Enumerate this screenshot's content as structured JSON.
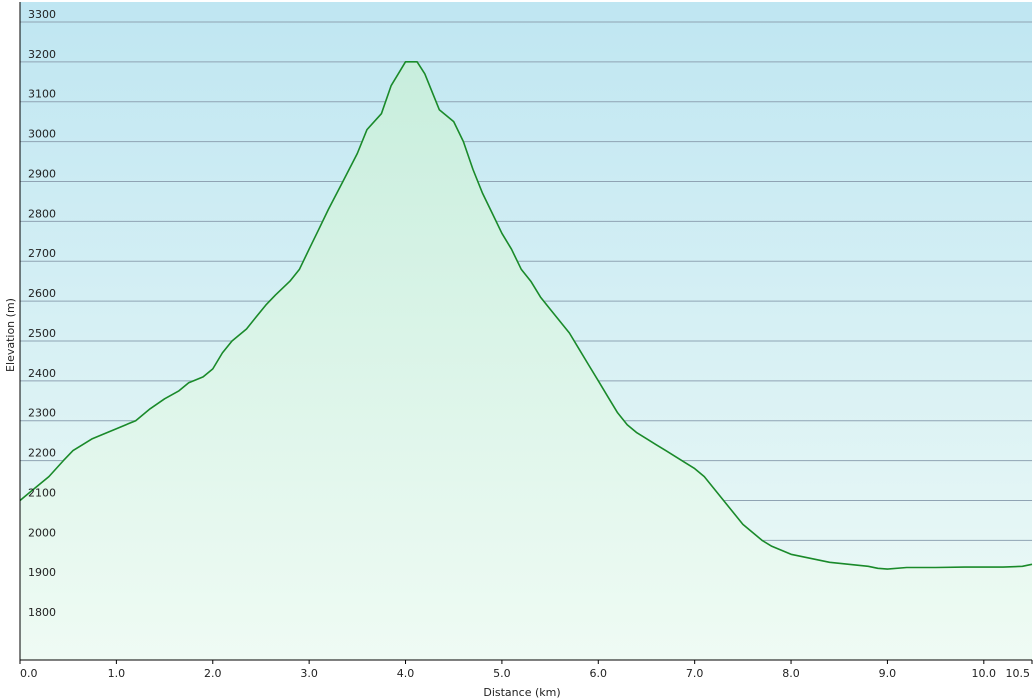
{
  "chart_data": {
    "type": "area",
    "title": "",
    "xlabel": "Distance  (km)",
    "ylabel": "Elevation (m)",
    "xlim": [
      0,
      10.5
    ],
    "ylim": [
      1700,
      3350
    ],
    "x_ticks": [
      0,
      1,
      2,
      3,
      4,
      5,
      6,
      7,
      8,
      9,
      10,
      10.5
    ],
    "x_tick_labels": [
      "0.0",
      "1.0",
      "2.0",
      "3.0",
      "4.0",
      "5.0",
      "6.0",
      "7.0",
      "8.0",
      "9.0",
      "10.0",
      "10.5"
    ],
    "y_ticks": [
      1800,
      1900,
      2000,
      2100,
      2200,
      2300,
      2400,
      2500,
      2600,
      2700,
      2800,
      2900,
      3000,
      3100,
      3200,
      3300
    ],
    "y_tick_labels": [
      "1800",
      "1900",
      "2000",
      "2100",
      "2200",
      "2300",
      "2400",
      "2500",
      "2600",
      "2700",
      "2800",
      "2900",
      "3000",
      "3100",
      "3200",
      "3300"
    ],
    "grid": true,
    "colors": {
      "line": "#1a8a2a",
      "fill_top": "#c8eedd",
      "fill_bottom": "#effbf4",
      "background_top": "#bfe6f2",
      "background_bottom": "#eefaf6",
      "grid": "#8fa3b3"
    },
    "series": [
      {
        "x": [
          0.0,
          0.1,
          0.2,
          0.3,
          0.45,
          0.55,
          0.65,
          0.75,
          0.85,
          1.0,
          1.1,
          1.2,
          1.35,
          1.5,
          1.65,
          1.75,
          1.9,
          2.0,
          2.1,
          2.2,
          2.35,
          2.45,
          2.55,
          2.65,
          2.8,
          2.9,
          3.0,
          3.1,
          3.2,
          3.35,
          3.5,
          3.6,
          3.75,
          3.85,
          3.95,
          4.0,
          4.12,
          4.2,
          4.35,
          4.5,
          4.6,
          4.7,
          4.8,
          4.9,
          5.0,
          5.1,
          5.2,
          5.3,
          5.4,
          5.5,
          5.6,
          5.7,
          5.8,
          5.9,
          6.0,
          6.1,
          6.2,
          6.3,
          6.4,
          6.5,
          6.6,
          6.7,
          6.8,
          6.9,
          7.0,
          7.1,
          7.2,
          7.3,
          7.4,
          7.5,
          7.6,
          7.7,
          7.8,
          7.9,
          8.0,
          8.2,
          8.4,
          8.6,
          8.8,
          8.9,
          9.0,
          9.2,
          9.5,
          9.8,
          10.0,
          10.2,
          10.4,
          10.5
        ],
        "y": [
          2100,
          2120,
          2140,
          2160,
          2200,
          2225,
          2240,
          2255,
          2265,
          2280,
          2290,
          2300,
          2330,
          2355,
          2375,
          2395,
          2410,
          2430,
          2470,
          2500,
          2530,
          2560,
          2590,
          2615,
          2650,
          2680,
          2730,
          2780,
          2830,
          2900,
          2970,
          3030,
          3070,
          3140,
          3180,
          3200,
          3200,
          3170,
          3080,
          3050,
          3000,
          2930,
          2870,
          2820,
          2770,
          2730,
          2680,
          2650,
          2610,
          2580,
          2550,
          2520,
          2480,
          2440,
          2400,
          2360,
          2320,
          2290,
          2270,
          2255,
          2240,
          2225,
          2210,
          2195,
          2180,
          2160,
          2130,
          2100,
          2070,
          2040,
          2020,
          2000,
          1985,
          1975,
          1965,
          1955,
          1945,
          1940,
          1935,
          1930,
          1928,
          1932,
          1932,
          1933,
          1933,
          1933,
          1935,
          1940
        ]
      }
    ]
  }
}
